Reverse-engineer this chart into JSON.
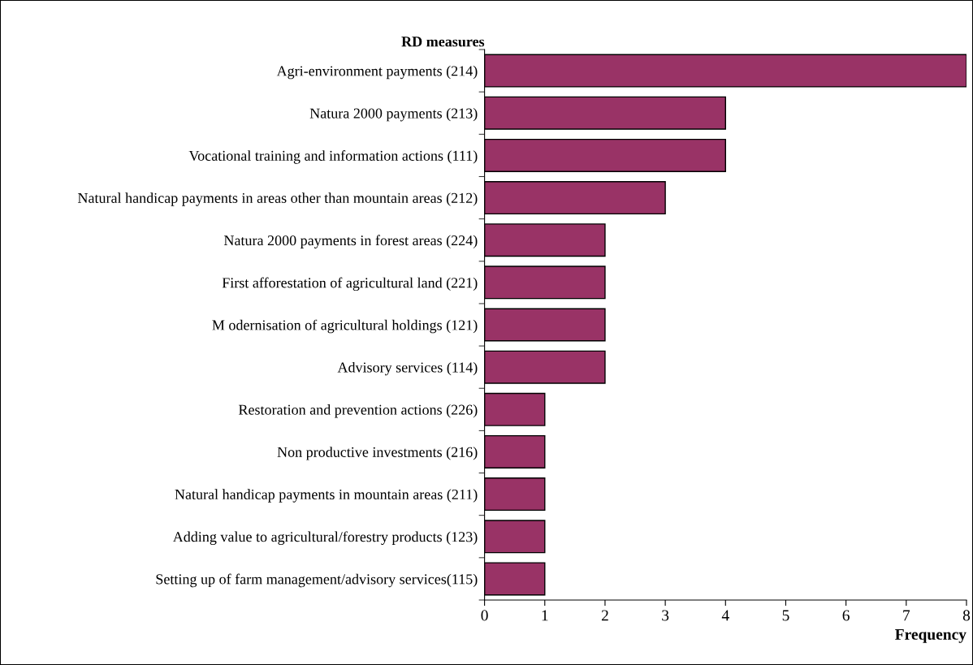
{
  "chart_data": {
    "type": "bar",
    "orientation": "horizontal",
    "ylabel": "RD measures",
    "xlabel": "Frequency",
    "categories": [
      "Agri-environment payments (214)",
      "Natura 2000 payments (213)",
      "Vocational training and information actions (111)",
      "Natural handicap payments in areas other than mountain areas (212)",
      "Natura 2000 payments in forest areas (224)",
      "First afforestation of agricultural land (221)",
      "M odernisation of agricultural holdings (121)",
      "Advisory services (114)",
      "Restoration and prevention actions (226)",
      "Non productive investments (216)",
      "Natural handicap payments in mountain areas (211)",
      "Adding value to agricultural/forestry products (123)",
      "Setting up of farm management/advisory services(115)"
    ],
    "values": [
      8,
      4,
      4,
      3,
      2,
      2,
      2,
      2,
      1,
      1,
      1,
      1,
      1
    ],
    "color": "#993366",
    "xlim": [
      0,
      8
    ],
    "xticks": [
      0,
      1,
      2,
      3,
      4,
      5,
      6,
      7,
      8
    ],
    "grid": false
  }
}
